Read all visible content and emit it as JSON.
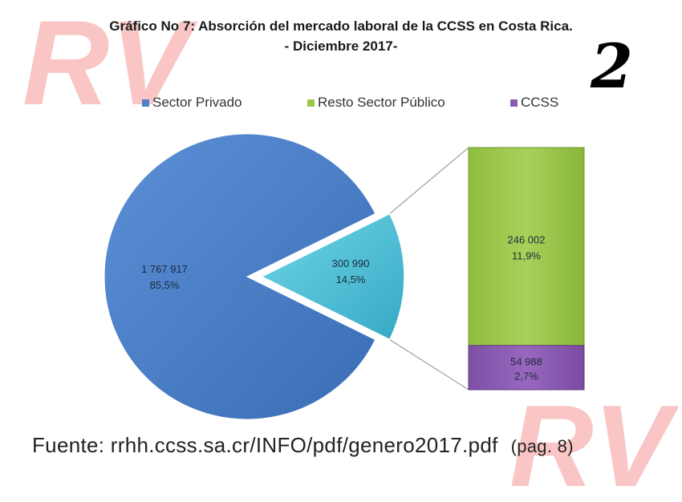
{
  "title_line1": "Gráfico No 7: Absorción del mercado laboral de la CCSS en Costa Rica.",
  "title_line2": "- Diciembre 2017-",
  "page_number": "2",
  "logo_text": "RV",
  "source_text": "Fuente: rrhh.ccss.sa.cr/INFO/pdf/genero2017.pdf",
  "source_note": "(pag. 8)",
  "colors": {
    "sector_privado": "#4a7fc9",
    "sector_publico_total": "#4cc5dc",
    "resto_sector_publico": "#9cc84a",
    "ccss": "#8a5bb0",
    "logo": "#f9c5c5"
  },
  "chart_data": {
    "type": "pie",
    "subtype": "bar-of-pie",
    "legend": [
      "Sector Privado",
      "Resto Sector Público",
      "CCSS"
    ],
    "pie": [
      {
        "value_label": "1 767 917",
        "percent_label": "85,5%",
        "value": 1767917,
        "percent": 85.5
      },
      {
        "value_label": "300 990",
        "percent_label": "14,5%",
        "value": 300990,
        "percent": 14.5
      }
    ],
    "bar": [
      {
        "name": "Resto Sector Público",
        "value_label": "246 002",
        "percent_label": "11,9%",
        "value": 246002,
        "percent": 11.9
      },
      {
        "name": "CCSS",
        "value_label": "54 988",
        "percent_label": "2,7%",
        "value": 54988,
        "percent": 2.7
      }
    ]
  }
}
